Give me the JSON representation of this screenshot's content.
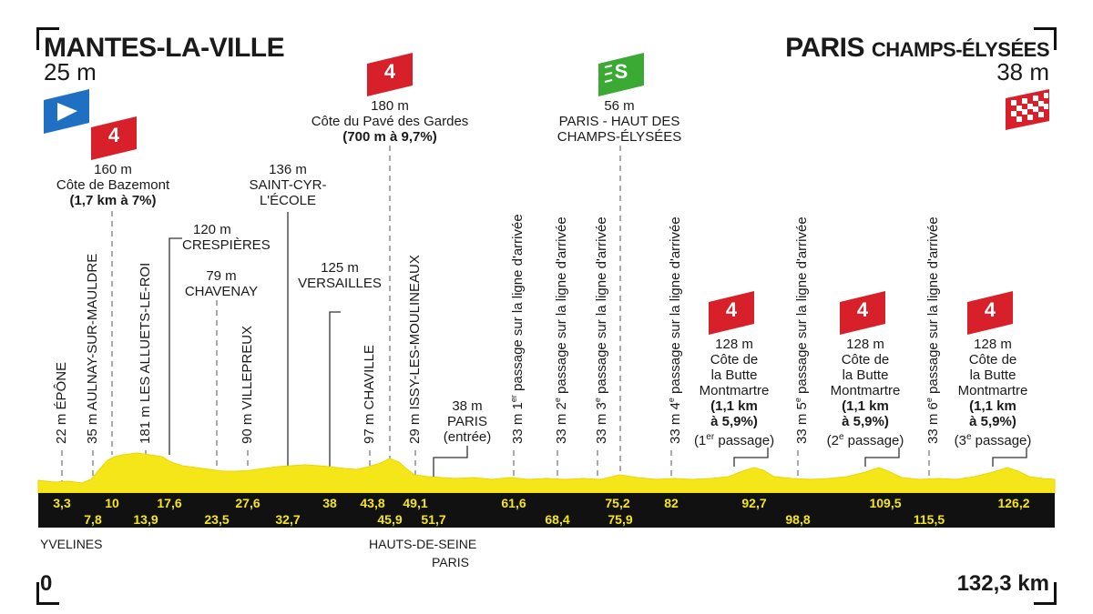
{
  "start": {
    "name": "MANTES-LA-VILLE",
    "alt": "25 m",
    "km": "0"
  },
  "finish": {
    "name_main": "PARIS",
    "name_sub": "CHAMPS-ÉLYSÉES",
    "alt": "38 m",
    "km": "132,3 km"
  },
  "regions": {
    "r1": "YVELINES",
    "r2": "HAUTS-DE-SEINE",
    "r3": "PARIS"
  },
  "climbs": [
    {
      "cat": "4",
      "alt": "160 m",
      "name": "Côte de Bazemont",
      "detail": "(1,7 km à 7%)"
    },
    {
      "cat": "4",
      "alt": "180 m",
      "name": "Côte du Pavé des Gardes",
      "detail": "(700 m à 9,7%)"
    },
    {
      "cat": "4",
      "alt": "128 m",
      "name1": "Côte de",
      "name2": "la Butte",
      "name3": "Montmartre",
      "d1": "(1,1 km",
      "d2": "à 5,9%)",
      "pass_pre": "(1",
      "pass_sup": "er",
      "pass_post": " passage)"
    },
    {
      "cat": "4",
      "alt": "128 m",
      "name1": "Côte de",
      "name2": "la Butte",
      "name3": "Montmartre",
      "d1": "(1,1 km",
      "d2": "à 5,9%)",
      "pass_pre": "(2",
      "pass_sup": "e",
      "pass_post": " passage)"
    },
    {
      "cat": "4",
      "alt": "128 m",
      "name1": "Côte de",
      "name2": "la Butte",
      "name3": "Montmartre",
      "d1": "(1,1 km",
      "d2": "à 5,9%)",
      "pass_pre": "(3",
      "pass_sup": "e",
      "pass_post": " passage)"
    }
  ],
  "sprint": {
    "icon": "S",
    "alt": "56 m",
    "line1": "PARIS - HAUT DES",
    "line2": "CHAMPS-ÉLYSÉES"
  },
  "places": {
    "crespieres": {
      "alt": "120 m",
      "name": "CRESPIÈRES"
    },
    "chavenay": {
      "alt": "79 m",
      "name": "CHAVENAY"
    },
    "saintcyr": {
      "alt": "136 m",
      "name1": "SAINT-CYR-",
      "name2": "L'ÉCOLE"
    },
    "versailles": {
      "alt": "125 m",
      "name": "VERSAILLES"
    },
    "paris_entree": {
      "alt": "38 m",
      "name": "PARIS",
      "note": "(entrée)"
    }
  },
  "vertical": [
    {
      "text": "22 m ÉPÔNE"
    },
    {
      "text": "35 m AULNAY-SUR-MAULDRE"
    },
    {
      "text": "181 m LES ALLUETS-LE-ROI"
    },
    {
      "text": "90 m VILLEPREUX"
    },
    {
      "text": "97 m CHAVILLE"
    },
    {
      "text": "29 m ISSY-LES-MOULINEAUX"
    },
    {
      "pre": "33 m 1",
      "sup": "er",
      "post": " passage sur la ligne d'arrivée"
    },
    {
      "pre": "33 m 2",
      "sup": "e",
      "post": " passage sur la ligne d'arrivée"
    },
    {
      "pre": "33 m 3",
      "sup": "e",
      "post": " passage sur la ligne d'arrivée"
    },
    {
      "pre": "33 m 4",
      "sup": "e",
      "post": " passage sur la ligne d'arrivée"
    },
    {
      "pre": "33 m 5",
      "sup": "e",
      "post": " passage sur la ligne d'arrivée"
    },
    {
      "pre": "33 m 6",
      "sup": "e",
      "post": " passage sur la ligne d'arrivée"
    }
  ],
  "km_top": [
    "3,3",
    "10",
    "17,6",
    "27,6",
    "38",
    "43,8",
    "49,1",
    "61,6",
    "75,2",
    "82",
    "92,7",
    "109,5",
    "126,2"
  ],
  "km_bottom": [
    "7,8",
    "13,9",
    "23,5",
    "32,7",
    "45,9",
    "51,7",
    "68,4",
    "75,9",
    "98,8",
    "115,5"
  ],
  "colors": {
    "profile": "#f5e61a",
    "band": "#111111",
    "km_text": "#f5e61a",
    "climb_flag": "#d7202a",
    "sprint_flag": "#3aaa35",
    "start_flag": "#1f6fc2",
    "finish_flag": "#d7202a"
  }
}
